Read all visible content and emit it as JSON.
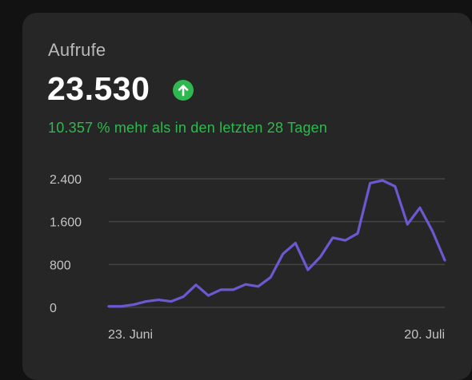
{
  "card": {
    "title": "Aufrufe",
    "value": "23.530",
    "trend_icon": "arrow-up-icon",
    "change_text": "10.357 % mehr als in den letzten 28 Tagen"
  },
  "colors": {
    "positive": "#2fb84f",
    "line": "#6a59d1",
    "grid": "#444444",
    "axis_text": "#c4c4c4"
  },
  "chart_data": {
    "type": "line",
    "title": "",
    "xlabel": "",
    "ylabel": "",
    "ylim": [
      0,
      2400
    ],
    "y_ticks": [
      0,
      800,
      1600,
      2400
    ],
    "y_tick_labels": [
      "0",
      "800",
      "1.600",
      "2.400"
    ],
    "x_tick_labels": [
      "23. Juni",
      "20. Juli"
    ],
    "grid": true,
    "series": [
      {
        "values": [
          20,
          20,
          50,
          110,
          140,
          110,
          200,
          420,
          220,
          330,
          330,
          430,
          390,
          560,
          1000,
          1200,
          700,
          940,
          1300,
          1250,
          1380,
          2320,
          2370,
          2260,
          1550,
          1860,
          1430,
          880
        ]
      }
    ]
  }
}
